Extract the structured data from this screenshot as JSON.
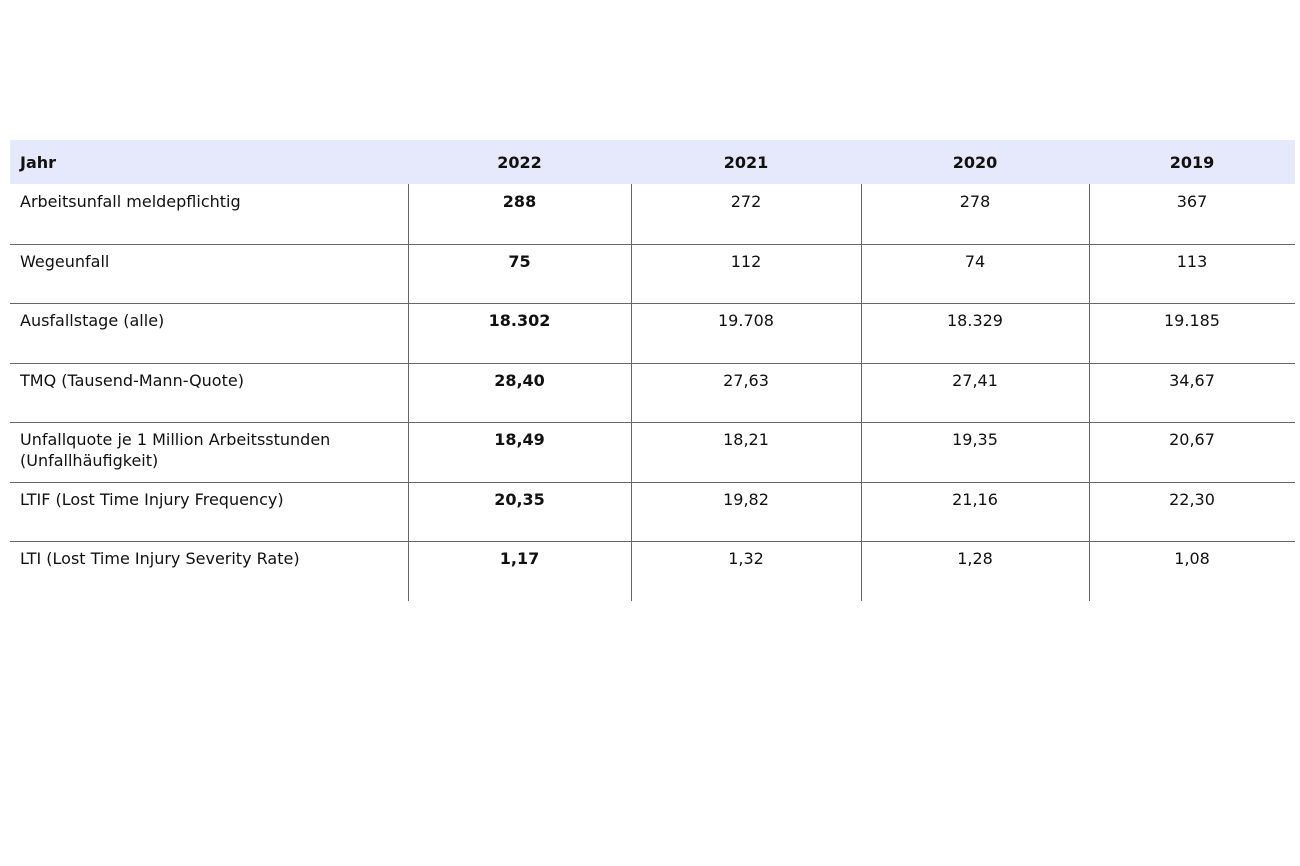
{
  "table": {
    "header": [
      "Jahr",
      "2022",
      "2021",
      "2020",
      "2019"
    ],
    "rows": [
      [
        "Arbeitsunfall meldepflichtig",
        "288",
        "272",
        "278",
        "367"
      ],
      [
        "Wegeunfall",
        "75",
        "112",
        "74",
        "113"
      ],
      [
        "Ausfallstage (alle)",
        "18.302",
        "19.708",
        "18.329",
        "19.185"
      ],
      [
        "TMQ (Tausend-Mann-Quote)",
        "28,40",
        "27,63",
        "27,41",
        "34,67"
      ],
      [
        "Unfallquote je 1 Million Arbeitsstunden (Unfallhäufigkeit)",
        "18,49",
        "18,21",
        "19,35",
        "20,67"
      ],
      [
        "LTIF (Lost Time Injury Frequency)",
        "20,35",
        "19,82",
        "21,16",
        "22,30"
      ],
      [
        "LTI (Lost Time Injury Severity Rate)",
        "1,17",
        "1,32",
        "1,28",
        "1,08"
      ]
    ]
  }
}
